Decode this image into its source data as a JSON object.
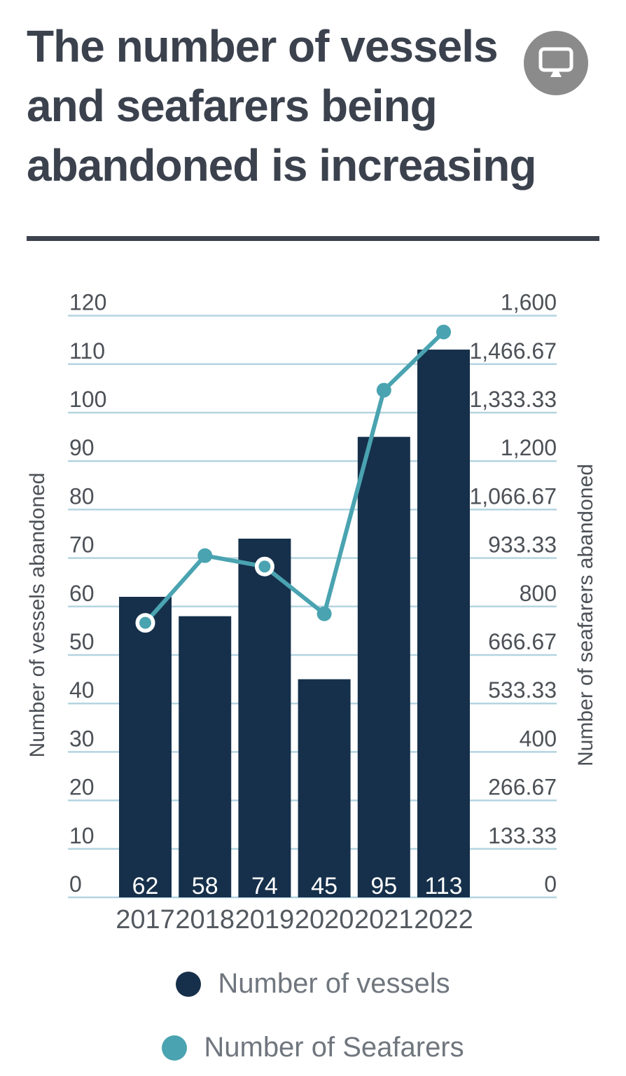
{
  "header": {
    "title_lines": [
      "The number of vessels",
      "and seafarers being",
      "abandoned is increasing"
    ],
    "corner_icon": "monitor-icon"
  },
  "legend": {
    "items": [
      {
        "label": "Number of vessels",
        "color": "#16304b"
      },
      {
        "label": "Number of Seafarers",
        "color": "#4aa3b0"
      }
    ]
  },
  "colors": {
    "title": "#3b424e",
    "divider": "#3d434e",
    "bars": "#16304b",
    "line": "#4aa3b0",
    "gridline": "#b3d4e0",
    "axis_text": "#4c5157",
    "year_text": "#53595f",
    "bar_value_text": "#ffffff",
    "legend_text": "#70767e",
    "corner_button": "#8b8b8b"
  },
  "chart_data": {
    "type": "combo-bar-line",
    "title": "",
    "categories": [
      "2017",
      "2018",
      "2019",
      "2020",
      "2021",
      "2022"
    ],
    "series": [
      {
        "name": "Number of vessels",
        "type": "bar",
        "axis": "left",
        "color": "#16304b",
        "values": [
          62,
          58,
          74,
          45,
          95,
          113
        ]
      },
      {
        "name": "Number of Seafarers",
        "type": "line",
        "axis": "right",
        "color": "#4aa3b0",
        "values": [
          755,
          940,
          910,
          780,
          1395,
          1555
        ],
        "ring_marker_indexes": [
          0,
          2
        ]
      }
    ],
    "bar_value_labels": [
      "62",
      "58",
      "74",
      "45",
      "95",
      "113"
    ],
    "left_axis": {
      "title": "Number of vessels abandoned",
      "min": 0,
      "max": 120,
      "tick_labels": [
        "0",
        "10",
        "20",
        "30",
        "40",
        "50",
        "60",
        "70",
        "80",
        "90",
        "100",
        "110",
        "120"
      ]
    },
    "right_axis": {
      "title": "Number of seafarers abandoned",
      "min": 0,
      "max": 1600,
      "tick_labels": [
        "0",
        "133.33",
        "266.67",
        "400",
        "533.33",
        "666.67",
        "800",
        "933.33",
        "1,066.67",
        "1,200",
        "1,333.33",
        "1,466.67",
        "1,600"
      ]
    },
    "grid": true,
    "legend_position": "bottom"
  }
}
